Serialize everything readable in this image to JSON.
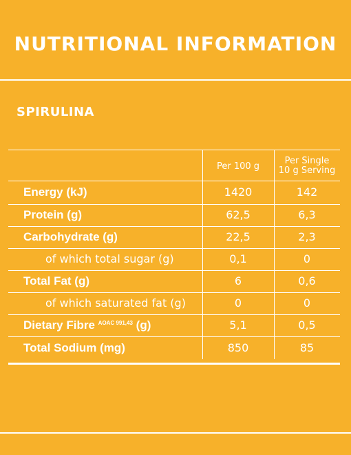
{
  "header": {
    "title": "NUTRITIONAL INFORMATION"
  },
  "product": {
    "name": "SPIRULINA"
  },
  "table": {
    "col_per_100g": "Per 100 g",
    "col_per_serving_line1": "Per Single",
    "col_per_serving_line2": "10 g Serving",
    "rows": [
      {
        "label": "Energy (kJ)",
        "per100": "1420",
        "serving": "142"
      },
      {
        "label": "Protein (g)",
        "per100": "62,5",
        "serving": "6,3"
      },
      {
        "label": "Carbohydrate (g)",
        "per100": "22,5",
        "serving": "2,3"
      },
      {
        "label": "of which total sugar (g)",
        "per100": "0,1",
        "serving": "0"
      },
      {
        "label": "Total Fat (g)",
        "per100": "6",
        "serving": "0,6"
      },
      {
        "label": "of which saturated fat (g)",
        "per100": "0",
        "serving": "0"
      },
      {
        "label": "Dietary Fibre",
        "label_sup": "AOAC 991,43",
        "label_unit": "(g)",
        "per100": "5,1",
        "serving": "0,5"
      },
      {
        "label": "Total Sodium (mg)",
        "per100": "850",
        "serving": "85"
      }
    ]
  },
  "colors": {
    "background": "#f7b12a",
    "text": "#ffffff"
  }
}
